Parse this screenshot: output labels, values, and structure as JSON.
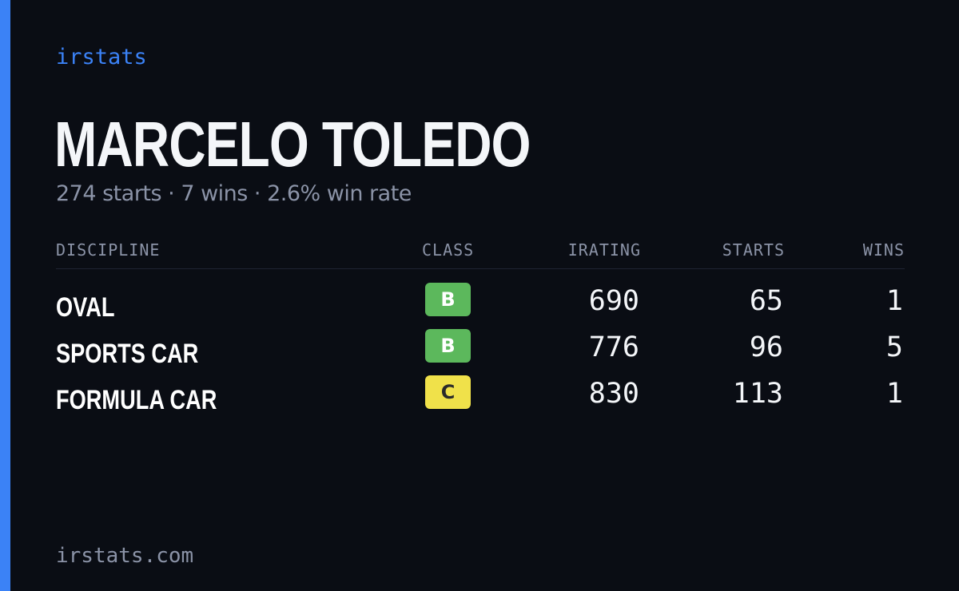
{
  "brand": "irstats",
  "driver": {
    "name": "MARCELO TOLEDO",
    "summary": "274 starts · 7 wins · 2.6% win rate"
  },
  "table": {
    "headers": {
      "discipline": "DISCIPLINE",
      "class": "CLASS",
      "irating": "IRATING",
      "starts": "STARTS",
      "wins": "WINS"
    },
    "rows": [
      {
        "discipline": "OVAL",
        "class": "B",
        "class_color": "#5cb85c",
        "class_text_color": "#ffffff",
        "irating": "690",
        "starts": "65",
        "wins": "1"
      },
      {
        "discipline": "SPORTS CAR",
        "class": "B",
        "class_color": "#5cb85c",
        "class_text_color": "#ffffff",
        "irating": "776",
        "starts": "96",
        "wins": "5"
      },
      {
        "discipline": "FORMULA CAR",
        "class": "C",
        "class_color": "#f0e14a",
        "class_text_color": "#2a2a2a",
        "irating": "830",
        "starts": "113",
        "wins": "1"
      }
    ]
  },
  "footer": "irstats.com",
  "colors": {
    "accent": "#3b82f6",
    "background": "#0a0d14",
    "muted": "#8b93a7",
    "text": "#f4f6f9"
  }
}
